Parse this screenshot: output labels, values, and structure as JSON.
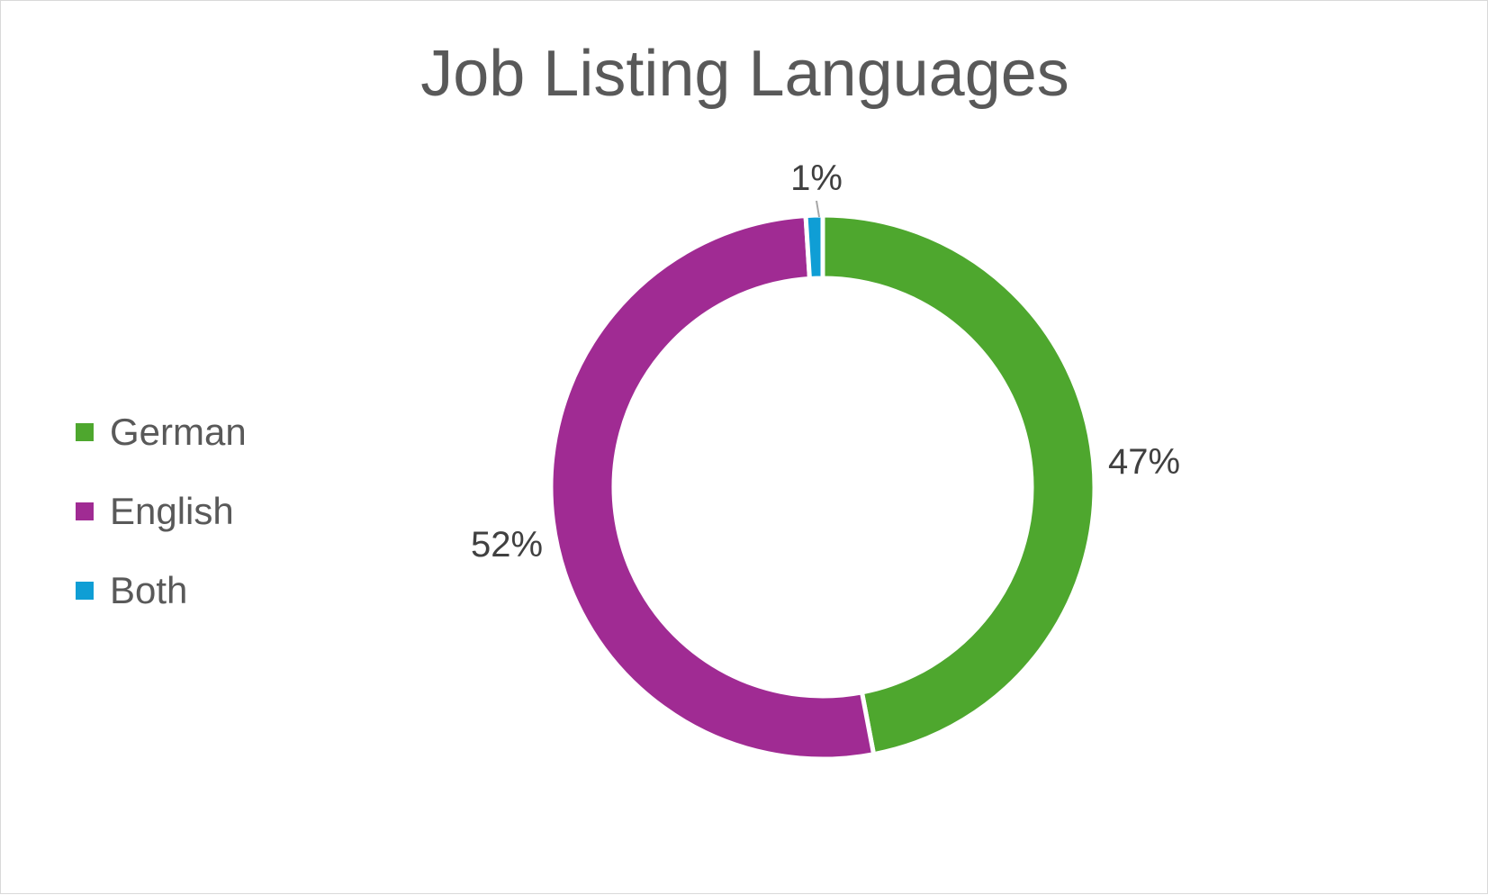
{
  "chart_data": {
    "type": "pie",
    "subtype": "donut",
    "title": "Job Listing Languages",
    "categories": [
      "German",
      "English",
      "Both"
    ],
    "values": [
      47,
      52,
      1
    ],
    "data_labels": [
      "47%",
      "52%",
      "1%"
    ],
    "colors": [
      "#4ea72e",
      "#a02b93",
      "#0f9ed5"
    ],
    "legend_position": "left",
    "start_angle_deg": 0
  }
}
